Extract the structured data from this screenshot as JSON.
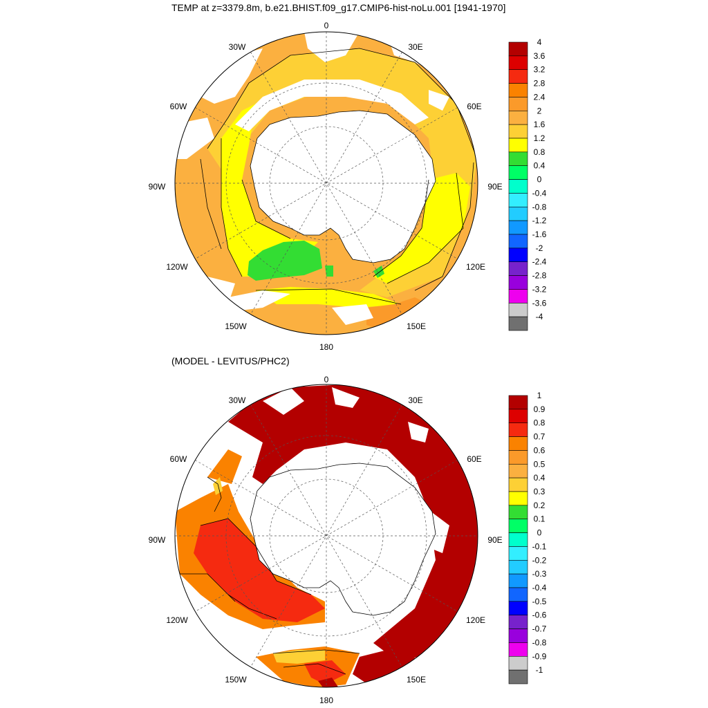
{
  "panels": [
    {
      "title": "TEMP at z=3379.8m, b.e21.BHIST.f09_g17.CMIP6-hist-noLu.001 [1941-1970]",
      "lon_labels": [
        "0",
        "30E",
        "60E",
        "90E",
        "120E",
        "150E",
        "180",
        "150W",
        "120W",
        "90W",
        "60W",
        "30W"
      ],
      "colorbar": {
        "colors": [
          "#b30000",
          "#dd0000",
          "#f52a10",
          "#fa8200",
          "#fb9a2a",
          "#fbb040",
          "#fdd035",
          "#ffff00",
          "#33dd33",
          "#00ff66",
          "#00ffcc",
          "#33eeff",
          "#22ccff",
          "#1199ff",
          "#1166ff",
          "#0000ff",
          "#7722cc",
          "#9900dd",
          "#ee00ee",
          "#cccccc",
          "#707070"
        ],
        "labels": [
          "4",
          "3.6",
          "3.2",
          "2.8",
          "2.4",
          "2",
          "1.6",
          "1.2",
          "0.8",
          "0.4",
          "0",
          "-0.4",
          "-0.8",
          "-1.2",
          "-1.6",
          "-2",
          "-2.4",
          "-2.8",
          "-3.2",
          "-3.6",
          "-4"
        ]
      }
    },
    {
      "title": "(MODEL - LEVITUS/PHC2)",
      "lon_labels": [
        "0",
        "30E",
        "60E",
        "90E",
        "120E",
        "150E",
        "180",
        "150W",
        "120W",
        "90W",
        "60W",
        "30W"
      ],
      "colorbar": {
        "colors": [
          "#b30000",
          "#dd0000",
          "#f52a10",
          "#fa8200",
          "#fb9a2a",
          "#fbb040",
          "#fdd035",
          "#ffff00",
          "#33dd33",
          "#00ff66",
          "#00ffcc",
          "#33eeff",
          "#22ccff",
          "#1199ff",
          "#1166ff",
          "#0000ff",
          "#7722cc",
          "#9900dd",
          "#ee00ee",
          "#cccccc",
          "#707070"
        ],
        "labels": [
          "1",
          "0.9",
          "0.8",
          "0.7",
          "0.6",
          "0.5",
          "0.4",
          "0.3",
          "0.2",
          "0.1",
          "0",
          "-0.1",
          "-0.2",
          "-0.3",
          "-0.4",
          "-0.5",
          "-0.6",
          "-0.7",
          "-0.8",
          "-0.9",
          "-1"
        ]
      }
    }
  ],
  "colors": {
    "land": "#ffffff",
    "coast": "#000000",
    "grid": "#555555"
  }
}
